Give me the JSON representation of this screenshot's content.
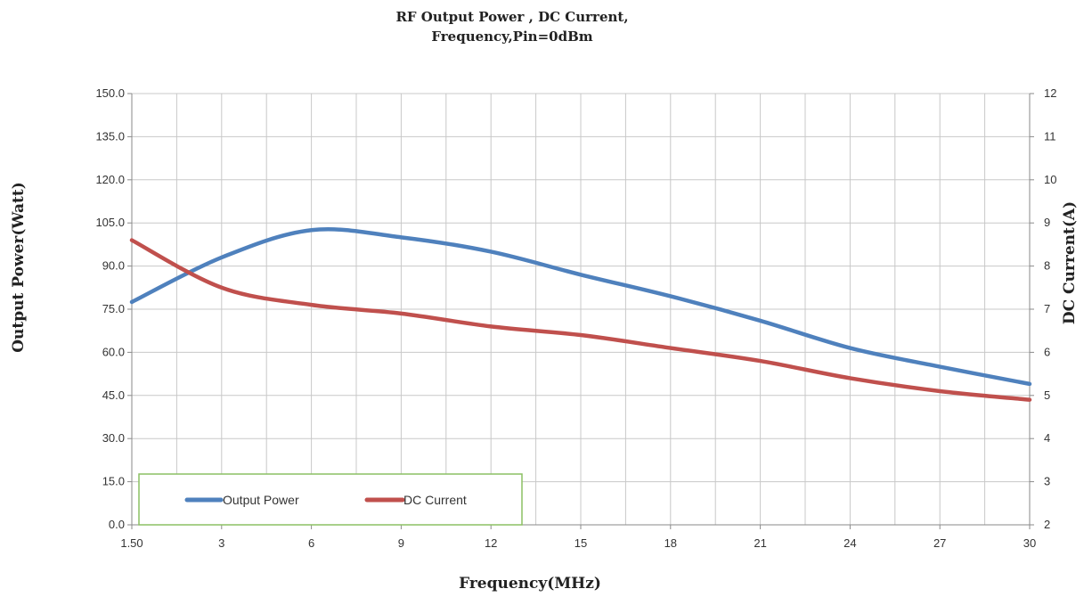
{
  "chart_data": {
    "type": "line",
    "title_lines": [
      "RF Output Power , DC Current,",
      "Frequency,Pin=0dBm"
    ],
    "xlabel": "Frequency(MHz)",
    "ylabel": "Output Power(Watt)",
    "y2label": "DC Current(A)",
    "x_ticks": [
      "1.50",
      "3",
      "6",
      "9",
      "12",
      "15",
      "18",
      "21",
      "24",
      "27",
      "30"
    ],
    "y_ticks": [
      "0.0",
      "15.0",
      "30.0",
      "45.0",
      "60.0",
      "75.0",
      "90.0",
      "105.0",
      "120.0",
      "135.0",
      "150.0"
    ],
    "y2_ticks": [
      "2",
      "3",
      "4",
      "5",
      "6",
      "7",
      "8",
      "9",
      "10",
      "11",
      "12"
    ],
    "ylim": [
      0,
      150
    ],
    "y2lim": [
      2,
      12
    ],
    "grid": true,
    "legend_position": "bottom-left",
    "series": [
      {
        "name": "Output Power",
        "axis": "left",
        "color": "#4f81bd",
        "values": [
          77.5,
          93,
          102.5,
          100,
          95,
          87,
          79.5,
          71,
          61.5,
          55,
          49
        ]
      },
      {
        "name": "DC Current",
        "axis": "right",
        "color": "#c0504d",
        "values": [
          8.6,
          7.5,
          7.1,
          6.9,
          6.6,
          6.4,
          6.1,
          5.8,
          5.4,
          5.1,
          4.9
        ]
      }
    ]
  }
}
